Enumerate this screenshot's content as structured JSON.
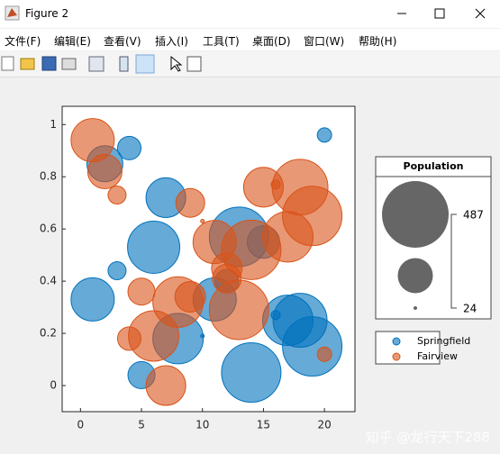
{
  "window": {
    "title": "Figure 2"
  },
  "menu": [
    "文件(F)",
    "编辑(E)",
    "查看(V)",
    "插入(I)",
    "工具(T)",
    "桌面(D)",
    "窗口(W)",
    "帮助(H)"
  ],
  "watermark": "知乎 @龙行天下288",
  "chart_data": {
    "type": "bubble",
    "xlim": [
      -1.5,
      22.5
    ],
    "ylim": [
      -0.1,
      1.07
    ],
    "xticks": [
      0,
      5,
      10,
      15,
      20
    ],
    "yticks": [
      0,
      0.2,
      0.4,
      0.6,
      0.8,
      1
    ],
    "grid": false,
    "size_legend": {
      "title": "Population",
      "values": [
        487,
        24
      ]
    },
    "series": [
      {
        "name": "Springfield",
        "color": "#0072bd",
        "x": [
          1,
          2,
          4,
          7,
          6,
          3,
          8,
          5,
          11,
          13,
          14,
          15,
          17,
          18,
          19,
          20,
          16,
          10,
          12
        ],
        "y": [
          0.33,
          0.85,
          0.91,
          0.72,
          0.53,
          0.44,
          0.18,
          0.04,
          0.33,
          0.57,
          0.05,
          0.55,
          0.25,
          0.25,
          0.15,
          0.96,
          0.27,
          0.19,
          0.4
        ],
        "sizes": [
          315,
          262,
          170,
          289,
          381,
          130,
          368,
          196,
          315,
          434,
          434,
          236,
          368,
          394,
          434,
          103,
          64,
          24,
          170
        ]
      },
      {
        "name": "Fairview",
        "color": "#d95319",
        "x": [
          1,
          2,
          3,
          9,
          5,
          8,
          9,
          6,
          4,
          7,
          11,
          12,
          12,
          13,
          14,
          15,
          17,
          18,
          19,
          20,
          16,
          10
        ],
        "y": [
          0.94,
          0.82,
          0.73,
          0.7,
          0.36,
          0.32,
          0.34,
          0.19,
          0.18,
          0.0,
          0.55,
          0.45,
          0.41,
          0.29,
          0.52,
          0.76,
          0.57,
          0.76,
          0.65,
          0.12,
          0.77,
          0.63
        ],
        "sizes": [
          315,
          249,
          130,
          209,
          196,
          368,
          222,
          368,
          170,
          289,
          315,
          222,
          209,
          434,
          434,
          289,
          368,
          407,
          434,
          103,
          64,
          24
        ]
      }
    ]
  }
}
